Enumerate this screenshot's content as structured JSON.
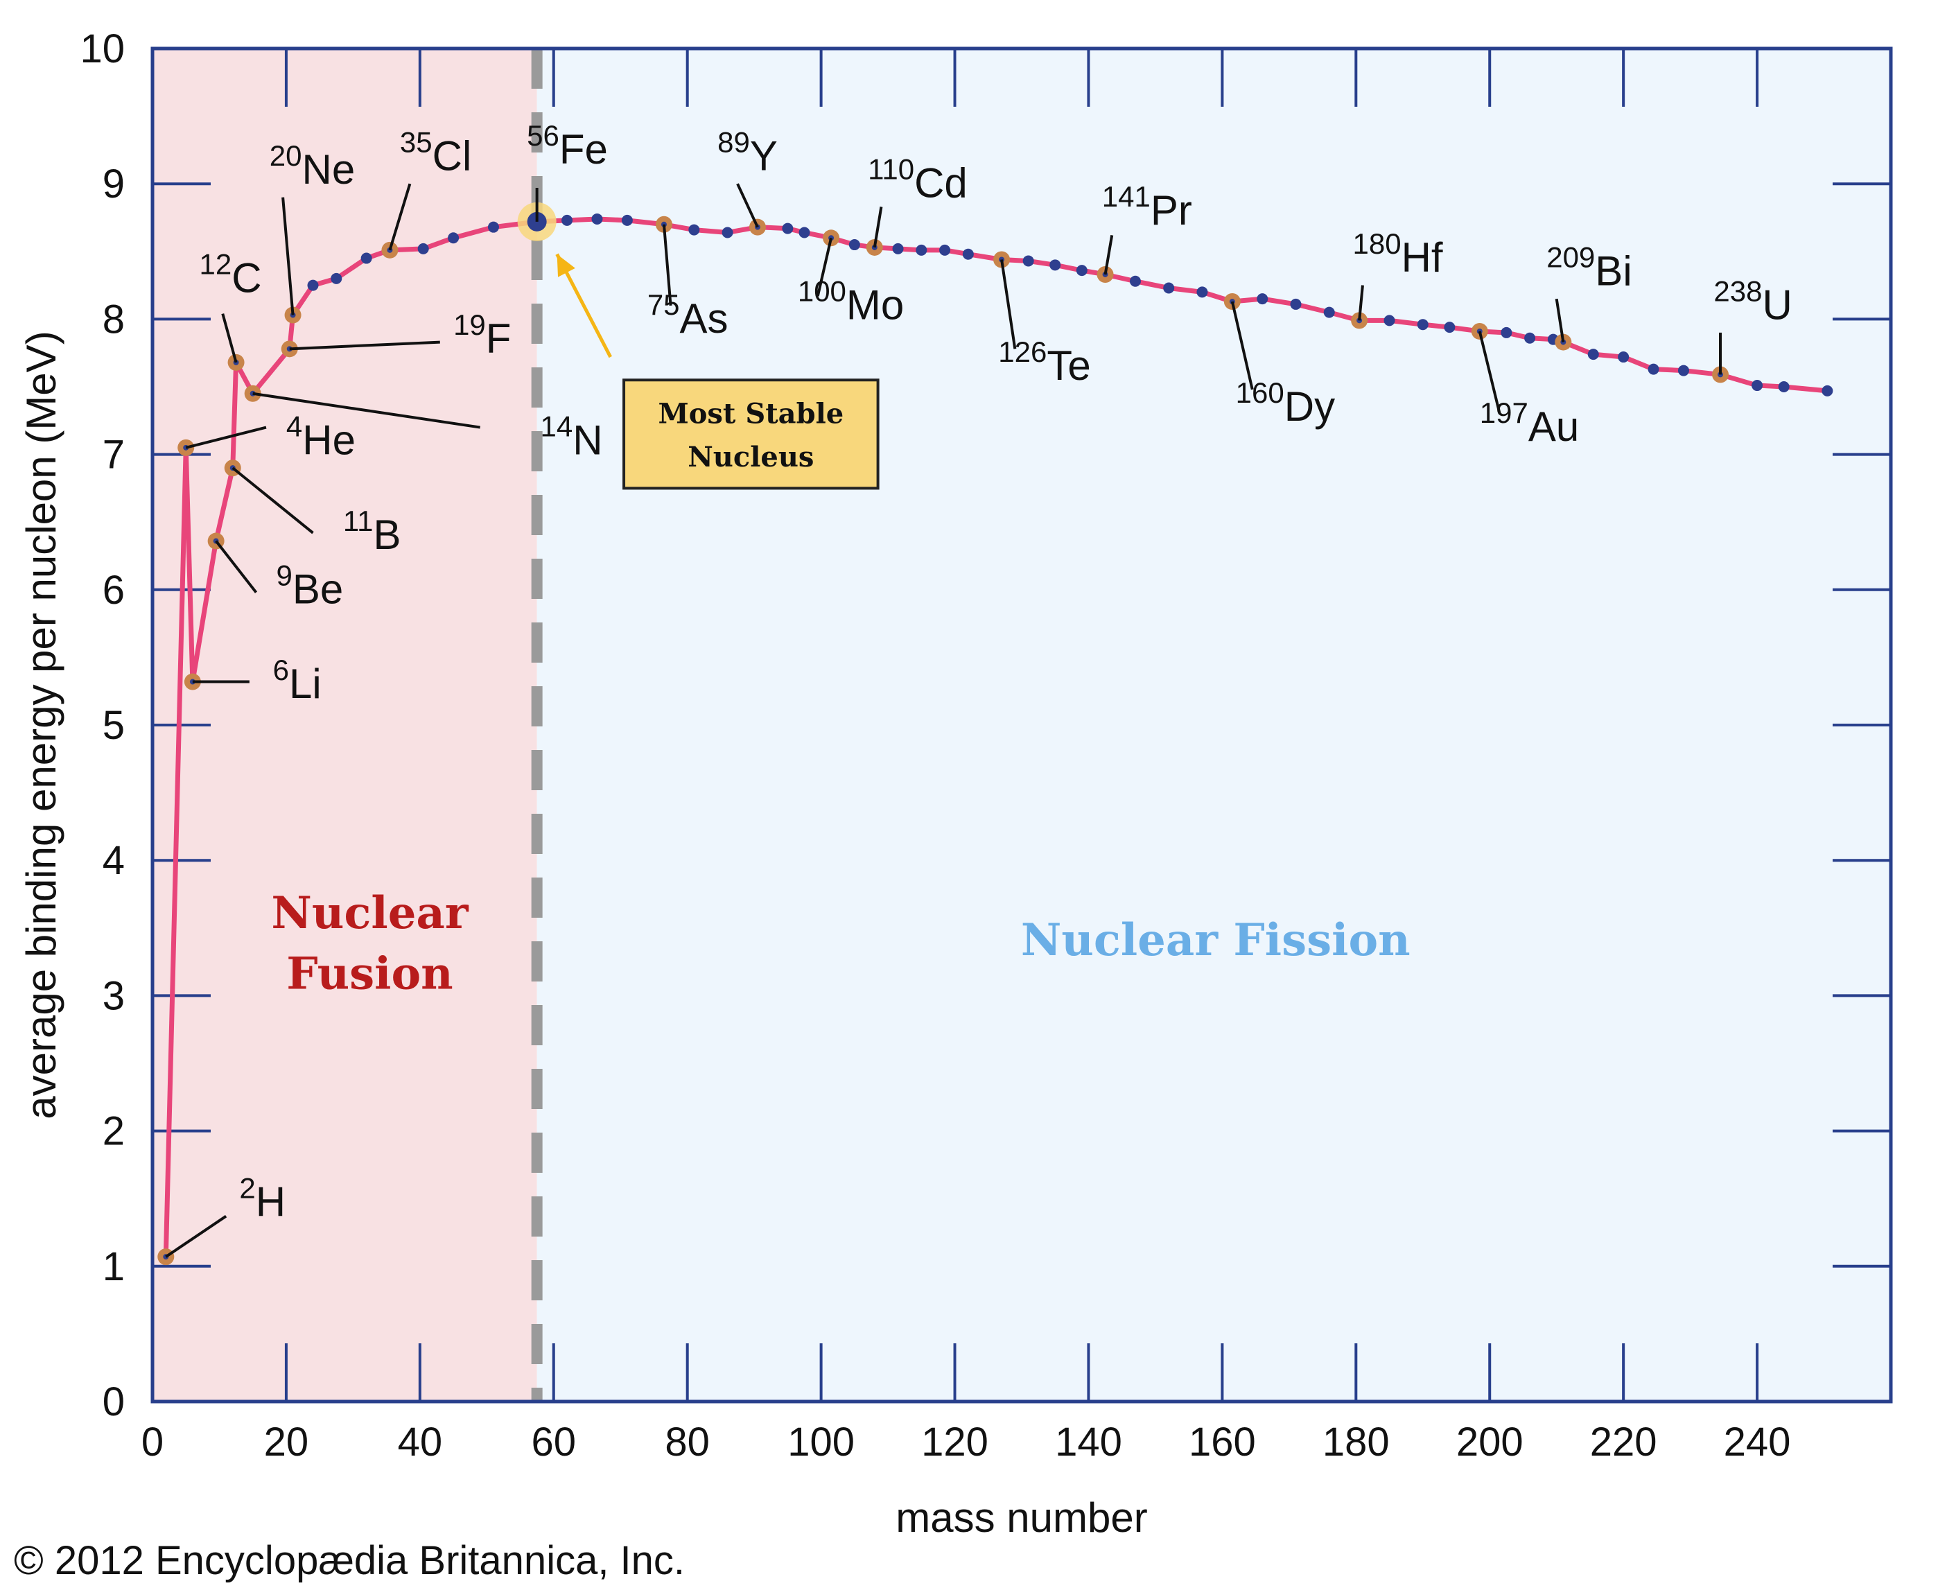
{
  "chart_data": {
    "type": "line",
    "xlabel": "mass number",
    "ylabel": "average binding energy per nucleon (MeV)",
    "xlim": [
      0,
      260
    ],
    "ylim": [
      0,
      10
    ],
    "x_ticks": [
      0,
      20,
      40,
      60,
      80,
      100,
      120,
      140,
      160,
      180,
      200,
      220,
      240
    ],
    "y_ticks": [
      0,
      1,
      2,
      3,
      4,
      5,
      6,
      7,
      8,
      9,
      10
    ],
    "grid": false,
    "colors": {
      "fusion_region": "#f8e1e3",
      "fission_region": "#eef6fd",
      "line": "#e8457a",
      "point": "#2e3f8f",
      "labeled_point": "#c8844a",
      "axis": "#283f8c",
      "fusion_text": "#b81c1c",
      "fission_text": "#6aaee6",
      "stable_box": "#f8d77c",
      "arrow": "#f5b515",
      "divider": "#9a9a9a"
    },
    "fusion_fission_boundary_x": 57.5,
    "regions": {
      "fusion_label": [
        "Nuclear",
        "Fusion"
      ],
      "fission_label": "Nuclear Fission"
    },
    "stable_nucleus": {
      "x": 57.5,
      "y": 8.72,
      "label": [
        "Most Stable",
        "Nucleus"
      ]
    },
    "points": [
      {
        "x": 2,
        "y": 1.07
      },
      {
        "x": 5,
        "y": 7.05
      },
      {
        "x": 6,
        "y": 5.32
      },
      {
        "x": 9.5,
        "y": 6.36
      },
      {
        "x": 12,
        "y": 6.9
      },
      {
        "x": 12.5,
        "y": 7.68
      },
      {
        "x": 15,
        "y": 7.45
      },
      {
        "x": 20.5,
        "y": 7.78
      },
      {
        "x": 21,
        "y": 8.03
      },
      {
        "x": 24,
        "y": 8.25
      },
      {
        "x": 27.5,
        "y": 8.3
      },
      {
        "x": 32,
        "y": 8.45
      },
      {
        "x": 35.5,
        "y": 8.51
      },
      {
        "x": 40.5,
        "y": 8.52
      },
      {
        "x": 45,
        "y": 8.6
      },
      {
        "x": 51,
        "y": 8.68
      },
      {
        "x": 57.5,
        "y": 8.72
      },
      {
        "x": 62,
        "y": 8.73
      },
      {
        "x": 66.5,
        "y": 8.74
      },
      {
        "x": 71,
        "y": 8.73
      },
      {
        "x": 76.5,
        "y": 8.7
      },
      {
        "x": 81,
        "y": 8.66
      },
      {
        "x": 86,
        "y": 8.64
      },
      {
        "x": 90.5,
        "y": 8.68
      },
      {
        "x": 95,
        "y": 8.67
      },
      {
        "x": 97.5,
        "y": 8.64
      },
      {
        "x": 101.5,
        "y": 8.6
      },
      {
        "x": 105,
        "y": 8.55
      },
      {
        "x": 108,
        "y": 8.53
      },
      {
        "x": 111.5,
        "y": 8.52
      },
      {
        "x": 115,
        "y": 8.51
      },
      {
        "x": 118.5,
        "y": 8.51
      },
      {
        "x": 122,
        "y": 8.48
      },
      {
        "x": 127,
        "y": 8.44
      },
      {
        "x": 131,
        "y": 8.43
      },
      {
        "x": 135,
        "y": 8.4
      },
      {
        "x": 139,
        "y": 8.36
      },
      {
        "x": 142.5,
        "y": 8.33
      },
      {
        "x": 147,
        "y": 8.28
      },
      {
        "x": 152,
        "y": 8.23
      },
      {
        "x": 157,
        "y": 8.2
      },
      {
        "x": 161.5,
        "y": 8.13
      },
      {
        "x": 166,
        "y": 8.15
      },
      {
        "x": 171,
        "y": 8.11
      },
      {
        "x": 176,
        "y": 8.05
      },
      {
        "x": 180.5,
        "y": 7.99
      },
      {
        "x": 185,
        "y": 7.99
      },
      {
        "x": 190,
        "y": 7.96
      },
      {
        "x": 194,
        "y": 7.94
      },
      {
        "x": 198.5,
        "y": 7.91
      },
      {
        "x": 202.5,
        "y": 7.9
      },
      {
        "x": 206,
        "y": 7.86
      },
      {
        "x": 209.5,
        "y": 7.85
      },
      {
        "x": 211,
        "y": 7.83
      },
      {
        "x": 215.5,
        "y": 7.74
      },
      {
        "x": 220,
        "y": 7.72
      },
      {
        "x": 224.5,
        "y": 7.63
      },
      {
        "x": 229,
        "y": 7.62
      },
      {
        "x": 234.5,
        "y": 7.59
      },
      {
        "x": 240,
        "y": 7.51
      },
      {
        "x": 244,
        "y": 7.5
      },
      {
        "x": 250.5,
        "y": 7.47
      }
    ],
    "labeled_nuclides": [
      {
        "mass": "2",
        "symbol": "H",
        "x": 2,
        "y": 1.07,
        "lx": 11,
        "ly": 1.37,
        "tx": 13,
        "ty": 1.37
      },
      {
        "mass": "4",
        "symbol": "He",
        "x": 5,
        "y": 7.05,
        "lx": 17,
        "ly": 7.2,
        "tx": 20,
        "ty": 7.0
      },
      {
        "mass": "6",
        "symbol": "Li",
        "x": 6,
        "y": 5.32,
        "lx": 14.5,
        "ly": 5.32,
        "tx": 18,
        "ty": 5.2
      },
      {
        "mass": "9",
        "symbol": "Be",
        "x": 9.5,
        "y": 6.36,
        "lx": 15.5,
        "ly": 5.98,
        "tx": 18.5,
        "ty": 5.9
      },
      {
        "mass": "11",
        "symbol": "B",
        "x": 12,
        "y": 6.9,
        "lx": 24,
        "ly": 6.42,
        "tx": 28.5,
        "ty": 6.3
      },
      {
        "mass": "12",
        "symbol": "C",
        "x": 12.5,
        "y": 7.68,
        "lx": 10.5,
        "ly": 8.04,
        "tx": 7,
        "ty": 8.2
      },
      {
        "mass": "14",
        "symbol": "N",
        "x": 15,
        "y": 7.45,
        "lx": 49,
        "ly": 7.2,
        "tx": 58,
        "ty": 7.0
      },
      {
        "mass": "19",
        "symbol": "F",
        "x": 20.5,
        "y": 7.78,
        "lx": 43,
        "ly": 7.83,
        "tx": 45,
        "ty": 7.75
      },
      {
        "mass": "20",
        "symbol": "Ne",
        "x": 21,
        "y": 8.03,
        "lx": 19.5,
        "ly": 8.9,
        "tx": 17.5,
        "ty": 9.0
      },
      {
        "mass": "35",
        "symbol": "Cl",
        "x": 35.5,
        "y": 8.51,
        "lx": 38.5,
        "ly": 9.0,
        "tx": 37,
        "ty": 9.1
      },
      {
        "mass": "56",
        "symbol": "Fe",
        "x": 57.5,
        "y": 8.72,
        "lx": 57.5,
        "ly": 8.97,
        "tx": 56,
        "ty": 9.15
      },
      {
        "mass": "75",
        "symbol": "As",
        "x": 76.5,
        "y": 8.7,
        "lx": 77.5,
        "ly": 8.1,
        "tx": 74,
        "ty": 7.9
      },
      {
        "mass": "89",
        "symbol": "Y",
        "x": 90.5,
        "y": 8.68,
        "lx": 87.5,
        "ly": 9.0,
        "tx": 84.5,
        "ty": 9.1
      },
      {
        "mass": "100",
        "symbol": "Mo",
        "x": 101.5,
        "y": 8.6,
        "lx": 99.5,
        "ly": 8.17,
        "tx": 96.5,
        "ty": 8.0
      },
      {
        "mass": "110",
        "symbol": "Cd",
        "x": 108,
        "y": 8.53,
        "lx": 109,
        "ly": 8.83,
        "tx": 107,
        "ty": 8.9
      },
      {
        "mass": "126",
        "symbol": "Te",
        "x": 127,
        "y": 8.44,
        "lx": 129,
        "ly": 7.78,
        "tx": 126.5,
        "ty": 7.55
      },
      {
        "mass": "141",
        "symbol": "Pr",
        "x": 142.5,
        "y": 8.33,
        "lx": 143.5,
        "ly": 8.62,
        "tx": 142,
        "ty": 8.7
      },
      {
        "mass": "160",
        "symbol": "Dy",
        "x": 161.5,
        "y": 8.13,
        "lx": 164.5,
        "ly": 7.48,
        "tx": 162,
        "ty": 7.25
      },
      {
        "mass": "180",
        "symbol": "Hf",
        "x": 180.5,
        "y": 7.99,
        "lx": 181,
        "ly": 8.25,
        "tx": 179.5,
        "ty": 8.35
      },
      {
        "mass": "197",
        "symbol": "Au",
        "x": 198.5,
        "y": 7.91,
        "lx": 201.5,
        "ly": 7.3,
        "tx": 198.5,
        "ty": 7.1
      },
      {
        "mass": "209",
        "symbol": "Bi",
        "x": 211,
        "y": 7.83,
        "lx": 210,
        "ly": 8.15,
        "tx": 208.5,
        "ty": 8.25
      },
      {
        "mass": "238",
        "symbol": "U",
        "x": 234.5,
        "y": 7.59,
        "lx": 234.5,
        "ly": 7.9,
        "tx": 233.5,
        "ty": 8.0
      }
    ]
  },
  "copyright": "© 2012 Encyclopædia Britannica, Inc."
}
